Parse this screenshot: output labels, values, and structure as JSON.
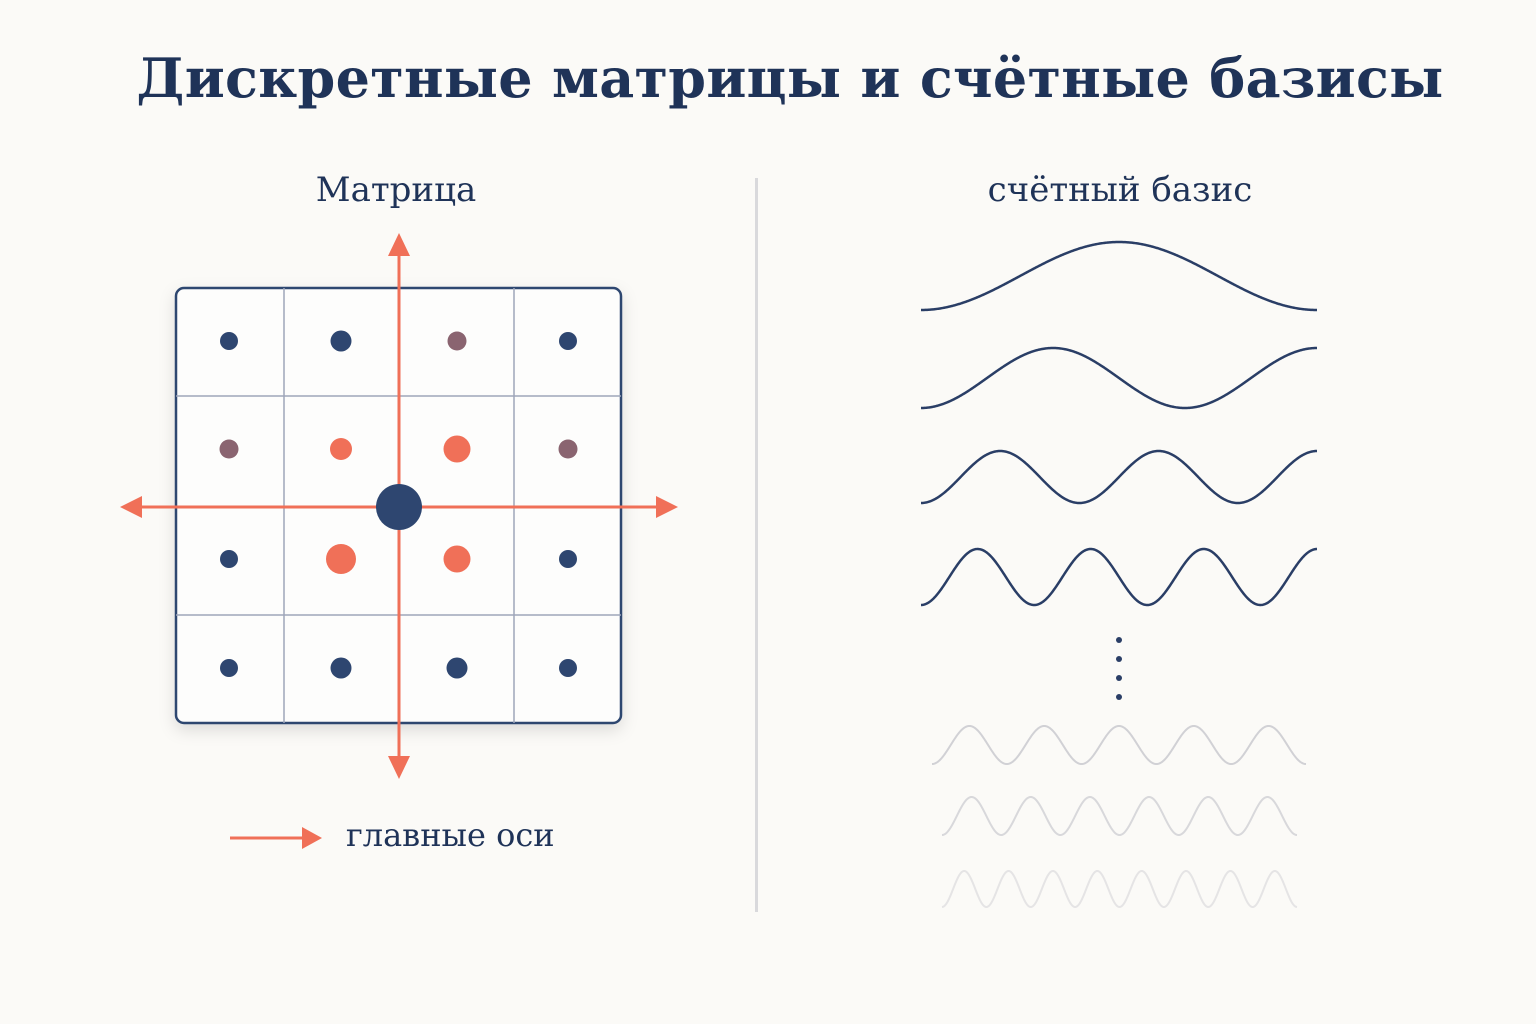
{
  "title": "Дискретные матрицы и счётные базисы",
  "matrix_panel": {
    "title": "Матрица",
    "legend_label": "главные оси",
    "colors": {
      "axis": "#f07058",
      "dot_dark": "#2e4670",
      "dot_accent": "#f07058",
      "dot_muted": "#8a6470",
      "grid": "#9ea6ba",
      "frame": "#2e4670"
    },
    "cells": [
      [
        "dark",
        "dark",
        "muted",
        "dark"
      ],
      [
        "muted",
        "accent",
        "accent",
        "muted"
      ],
      [
        "dark",
        "accent",
        "accent",
        "dark"
      ],
      [
        "dark",
        "dark",
        "dark",
        "dark"
      ]
    ]
  },
  "basis_panel": {
    "title": "счётный базис",
    "colors": {
      "wave": "#2a3e66",
      "faded_wave": "#c9c9cf"
    },
    "waves_visible": [
      1,
      3,
      5,
      7
    ],
    "waves_faded": [
      10,
      14,
      18
    ]
  }
}
